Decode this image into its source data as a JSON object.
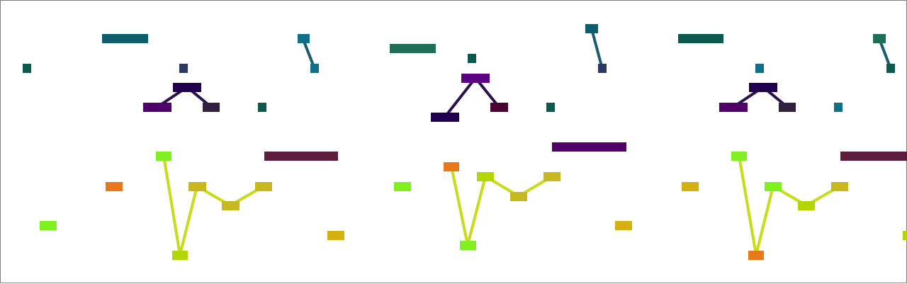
{
  "diagram": {
    "tiles": [
      {
        "tile": "left",
        "blocks": [
          "left-cool-bar",
          "left-cool-square-a",
          "left-cool-square-b",
          "left-cool-link-top",
          "left-cool-link-bottom",
          "left-cool-square-c",
          "left-tree-root",
          "left-tree-left",
          "left-tree-right",
          "left-maroon-bar",
          "left-warm-orange",
          "left-warm-lime-low",
          "left-chain-1",
          "left-chain-2",
          "left-chain-3",
          "left-chain-4",
          "left-chain-5",
          "left-chain-6",
          "left-warm-yellow"
        ]
      },
      {
        "tile": "middle",
        "blocks": [
          "mid-green-bar",
          "mid-cool-square",
          "mid-link-top",
          "mid-link-bottom",
          "mid-tree-root",
          "mid-tree-left",
          "mid-tree-right",
          "mid-teal-square",
          "mid-purple-bar",
          "mid-lime-square",
          "mid-chain-1",
          "mid-chain-2",
          "mid-chain-3",
          "mid-chain-4",
          "mid-chain-5",
          "mid-yellow-square"
        ]
      },
      {
        "tile": "right",
        "blocks": [
          "right-cool-bar",
          "right-cool-square-a",
          "right-link-top",
          "right-link-bottom",
          "right-tree-root",
          "right-tree-left",
          "right-tree-right",
          "right-blue-square",
          "right-maroon-bar",
          "right-yellow-square",
          "right-chain-1",
          "right-chain-2",
          "right-chain-3",
          "right-chain-4",
          "right-chain-5",
          "right-chain-6",
          "right-edge-square"
        ]
      }
    ],
    "palette": {
      "teal": "#0e5d6b",
      "teal_green": "#0c5a4e",
      "green": "#1e6e58",
      "navy": "#2a3a64",
      "blue": "#10708a",
      "indigo": "#220050",
      "purple": "#500068",
      "violet": "#5a0080",
      "plum": "#322040",
      "maroon": "#4a0030",
      "wine": "#5c1e3c",
      "lime": "#80f020",
      "yellow_green": "#b2d600",
      "olive_yellow": "#c8b820",
      "gold": "#d4b010",
      "orange": "#e87818",
      "link_cool": "#1a5c70",
      "link_tree": "#2c1050",
      "link_warm": "#c8dc18"
    }
  }
}
